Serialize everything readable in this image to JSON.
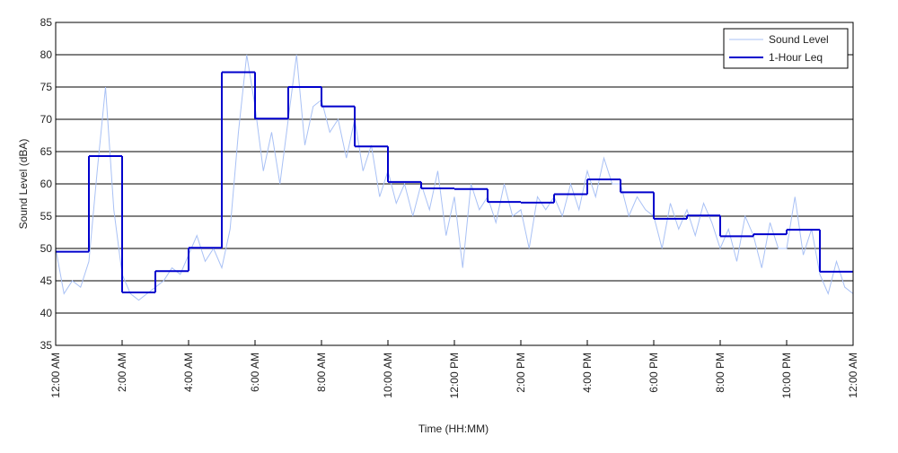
{
  "chart_data": {
    "type": "line",
    "y_label": "Sound Level (dBA)",
    "x_label": "Time (HH:MM)",
    "xlim": [
      0,
      24
    ],
    "xticks": [
      {
        "value": 0,
        "label": "12:00 AM"
      },
      {
        "value": 2,
        "label": "2:00 AM"
      },
      {
        "value": 4,
        "label": "4:00 AM"
      },
      {
        "value": 6,
        "label": "6:00 AM"
      },
      {
        "value": 8,
        "label": "8:00 AM"
      },
      {
        "value": 10,
        "label": "10:00 AM"
      },
      {
        "value": 12,
        "label": "12:00 PM"
      },
      {
        "value": 14,
        "label": "2:00 PM"
      },
      {
        "value": 16,
        "label": "4:00 PM"
      },
      {
        "value": 18,
        "label": "6:00 PM"
      },
      {
        "value": 20,
        "label": "8:00 PM"
      },
      {
        "value": 22,
        "label": "10:00 PM"
      },
      {
        "value": 24,
        "label": "12:00 AM"
      }
    ],
    "ylim": [
      35,
      85
    ],
    "yticks": [
      35,
      40,
      45,
      50,
      55,
      60,
      65,
      70,
      75,
      80,
      85
    ],
    "grid": true,
    "legend": "upper right",
    "series": [
      {
        "name": "Sound Level",
        "color": "#a9c1f5",
        "step": false,
        "x": [
          0,
          0.25,
          0.5,
          0.75,
          1,
          1.25,
          1.5,
          1.75,
          2,
          2.25,
          2.5,
          2.75,
          3,
          3.25,
          3.5,
          3.75,
          4,
          4.25,
          4.5,
          4.75,
          5,
          5.25,
          5.5,
          5.75,
          6,
          6.25,
          6.5,
          6.75,
          7,
          7.25,
          7.5,
          7.75,
          8,
          8.25,
          8.5,
          8.75,
          9,
          9.25,
          9.5,
          9.75,
          10,
          10.25,
          10.5,
          10.75,
          11,
          11.25,
          11.5,
          11.75,
          12,
          12.25,
          12.5,
          12.75,
          13,
          13.25,
          13.5,
          13.75,
          14,
          14.25,
          14.5,
          14.75,
          15,
          15.25,
          15.5,
          15.75,
          16,
          16.25,
          16.5,
          16.75,
          17,
          17.25,
          17.5,
          17.75,
          18,
          18.25,
          18.5,
          18.75,
          19,
          19.25,
          19.5,
          19.75,
          20,
          20.25,
          20.5,
          20.75,
          21,
          21.25,
          21.5,
          21.75,
          22,
          22.25,
          22.5,
          22.75,
          23,
          23.25,
          23.5,
          23.75,
          24
        ],
        "values": [
          50,
          43,
          45,
          44,
          48,
          62,
          75,
          56,
          46,
          43,
          42,
          43,
          44,
          45,
          47,
          46,
          49,
          52,
          48,
          50,
          47,
          53,
          68,
          80,
          72,
          62,
          68,
          60,
          70,
          80,
          66,
          72,
          73,
          68,
          70,
          64,
          70,
          62,
          66,
          58,
          62,
          57,
          60,
          55,
          60,
          56,
          62,
          52,
          58,
          47,
          60,
          56,
          58,
          54,
          60,
          55,
          56,
          50,
          58,
          56,
          58,
          55,
          60,
          56,
          62,
          58,
          64,
          60,
          60,
          55,
          58,
          56,
          55,
          50,
          57,
          53,
          56,
          52,
          57,
          54,
          50,
          53,
          48,
          55,
          52,
          47,
          54,
          50,
          50,
          58,
          49,
          53,
          46,
          43,
          48,
          44,
          43
        ]
      },
      {
        "name": "1-Hour Leq",
        "color": "#0000cc",
        "step": true,
        "x": [
          0,
          1,
          2,
          3,
          4,
          5,
          6,
          7,
          8,
          9,
          10,
          11,
          12,
          13,
          14,
          15,
          16,
          17,
          18,
          19,
          20,
          21,
          22,
          23
        ],
        "values": [
          49.5,
          64.3,
          43.2,
          46.5,
          50.1,
          77.3,
          70.1,
          75.0,
          72.0,
          65.8,
          60.3,
          59.3,
          59.2,
          57.2,
          57.1,
          58.4,
          60.7,
          58.7,
          54.6,
          55.1,
          51.9,
          52.2,
          52.9,
          46.4
        ]
      }
    ]
  }
}
